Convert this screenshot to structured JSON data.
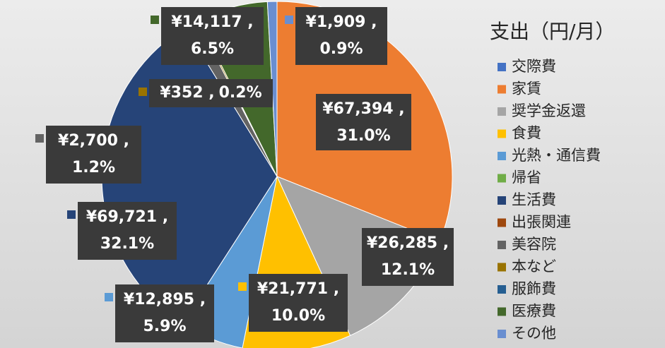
{
  "chart_data": {
    "type": "pie",
    "title": "支出（円/月）",
    "categories": [
      "交際費",
      "家賃",
      "奨学金返還",
      "食費",
      "光熱・通信費",
      "帰省",
      "生活費",
      "出張関連",
      "美容院",
      "本など",
      "服飾費",
      "医療費",
      "その他"
    ],
    "values": [
      0,
      67394,
      26285,
      21771,
      12895,
      0,
      69721,
      0,
      2700,
      352,
      0,
      14117,
      1909
    ],
    "value_labels": [
      null,
      "¥67,394 ,",
      "¥26,285 ,",
      "¥21,771 ,",
      "¥12,895 ,",
      null,
      "¥69,721 ,",
      null,
      "¥2,700 ,",
      "¥352 ,",
      null,
      "¥14,117 ,",
      "¥1,909 ,"
    ],
    "percent_labels": [
      null,
      "31.0%",
      "12.1%",
      "10.0%",
      "5.9%",
      null,
      "32.1%",
      null,
      "1.2%",
      "0.2%",
      null,
      "6.5%",
      "0.9%"
    ],
    "colors": [
      "#4472c4",
      "#ed7d31",
      "#a5a5a5",
      "#ffc000",
      "#5b9bd5",
      "#70ad47",
      "#264478",
      "#9e480e",
      "#636363",
      "#997300",
      "#255e91",
      "#43682b",
      "#698ed0"
    ],
    "legend": "right"
  }
}
